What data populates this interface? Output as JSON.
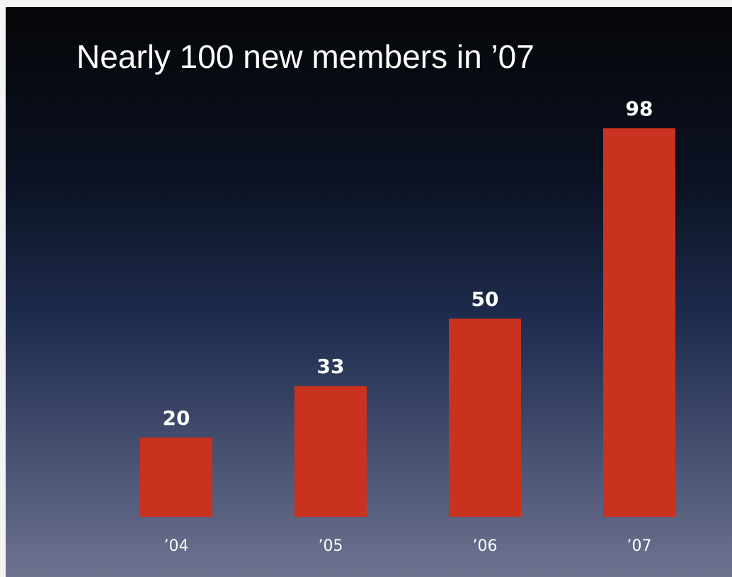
{
  "chart_data": {
    "type": "bar",
    "title": "Nearly 100 new members in ’07",
    "categories": [
      "’04",
      "’05",
      "’06",
      "’07"
    ],
    "values": [
      20,
      33,
      50,
      98
    ],
    "color": "#c8321e"
  }
}
